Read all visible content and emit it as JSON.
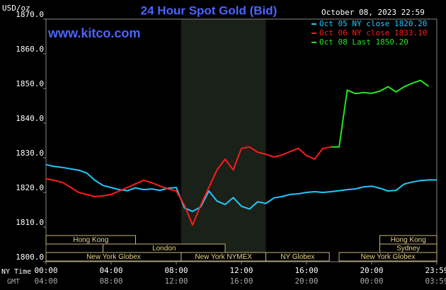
{
  "chart_data": {
    "type": "line",
    "title": "24 Hour Spot Gold (Bid)",
    "units_label": "USD/oz",
    "date_label": "October 08, 2023 22:59",
    "site_label": "www.kitco.com",
    "x_row_label": "NY Time",
    "x2_row_label": "GMT",
    "x": [
      0,
      0.5,
      1,
      1.5,
      2,
      2.5,
      3,
      3.5,
      4,
      4.5,
      5,
      5.5,
      6,
      6.5,
      7,
      7.5,
      8,
      8.5,
      9,
      9.5,
      10,
      10.5,
      11,
      11.5,
      12,
      12.5,
      13,
      13.5,
      14,
      14.5,
      15,
      15.5,
      16,
      16.5,
      17,
      17.5,
      18,
      18.5,
      19,
      19.5,
      20,
      20.5,
      21,
      21.5,
      22,
      22.5,
      23,
      23.5,
      24
    ],
    "xlim": [
      0,
      24
    ],
    "xticks": [
      {
        "value": 0,
        "label": "00:00"
      },
      {
        "value": 4,
        "label": "04:00"
      },
      {
        "value": 8,
        "label": "08:00"
      },
      {
        "value": 12,
        "label": "12:00"
      },
      {
        "value": 16,
        "label": "16:00"
      },
      {
        "value": 20,
        "label": "20:00"
      },
      {
        "value": 24,
        "label": "23:59"
      }
    ],
    "x2tick_labels": [
      "04:00",
      "08:00",
      "12:00",
      "16:00",
      "20:00",
      "00:00",
      "03:59"
    ],
    "ylim": [
      1800,
      1870
    ],
    "yticks": [
      {
        "value": 1800,
        "label": "1800.0"
      },
      {
        "value": 1810,
        "label": "1810.0"
      },
      {
        "value": 1820,
        "label": "1820.0"
      },
      {
        "value": 1830,
        "label": "1830.0"
      },
      {
        "value": 1840,
        "label": "1840.0"
      },
      {
        "value": 1850,
        "label": "1850.0"
      },
      {
        "value": 1860,
        "label": "1860.0"
      },
      {
        "value": 1870,
        "label": "1870.0"
      }
    ],
    "grid": false,
    "legend": "top-right",
    "series": [
      {
        "name": "Oct 05 NY close 1820.20",
        "color": "#22c8ff",
        "values": [
          1828.0,
          1827.5,
          1827.2,
          1826.8,
          1826.4,
          1825.6,
          1823.5,
          1822.0,
          1821.4,
          1820.8,
          1820.5,
          1821.3,
          1820.8,
          1821.0,
          1820.6,
          1821.2,
          1821.4,
          1815.5,
          1814.5,
          1815.8,
          1820.4,
          1817.5,
          1816.5,
          1818.5,
          1816.0,
          1815.2,
          1817.3,
          1816.8,
          1818.4,
          1818.8,
          1819.4,
          1819.6,
          1820.0,
          1820.2,
          1820.0,
          1820.2,
          1820.5,
          1820.8,
          1821.0,
          1821.6,
          1821.8,
          1821.2,
          1820.4,
          1820.6,
          1822.4,
          1823.0,
          1823.4,
          1823.6,
          1823.6
        ]
      },
      {
        "name": "Oct 06 NY close 1833.10",
        "color": "#ff1a1a",
        "values": [
          1823.9,
          1823.5,
          1822.9,
          1821.5,
          1820.0,
          1819.4,
          1818.8,
          1819.0,
          1819.4,
          1820.4,
          1821.4,
          1822.5,
          1823.5,
          1822.8,
          1821.8,
          1821.0,
          1820.4,
          1816.3,
          1810.6,
          1816.3,
          1821.4,
          1826.5,
          1829.6,
          1826.5,
          1832.7,
          1833.1,
          1831.6,
          1831.0,
          1830.2,
          1830.8,
          1831.8,
          1832.7,
          1830.6,
          1829.6,
          1832.7,
          1833.1,
          null,
          null,
          null,
          null,
          null,
          null,
          null,
          null,
          null,
          null,
          null,
          null,
          null
        ]
      },
      {
        "name": "Oct 08 Last 1850.20",
        "color": "#22e622",
        "values": [
          null,
          null,
          null,
          null,
          null,
          null,
          null,
          null,
          null,
          null,
          null,
          null,
          null,
          null,
          null,
          null,
          null,
          null,
          null,
          null,
          null,
          null,
          null,
          null,
          null,
          null,
          null,
          null,
          null,
          null,
          null,
          null,
          null,
          null,
          null,
          1833.1,
          1833.1,
          1849.5,
          1848.5,
          1848.8,
          1848.6,
          1849.2,
          1850.5,
          1849.0,
          1850.5,
          1851.5,
          1852.3,
          1850.6,
          null
        ]
      }
    ],
    "sessions": [
      [
        {
          "label": "Hong Kong",
          "start": 0,
          "end": 5.5
        },
        {
          "label": "Hong Kong",
          "start": 20.5,
          "end": 24
        }
      ],
      [
        {
          "label": "London",
          "start": 3.5,
          "end": 11
        },
        {
          "label": "Sydney",
          "start": 20.5,
          "end": 24
        }
      ],
      [
        {
          "label": "New York Globex",
          "start": 0,
          "end": 8.3
        },
        {
          "label": "New York NYMEX",
          "start": 8.3,
          "end": 13.5,
          "shaded": true
        },
        {
          "label": "NY Globex",
          "start": 13.5,
          "end": 17.4
        },
        {
          "label": "New York Globex",
          "start": 18,
          "end": 24
        }
      ]
    ]
  }
}
